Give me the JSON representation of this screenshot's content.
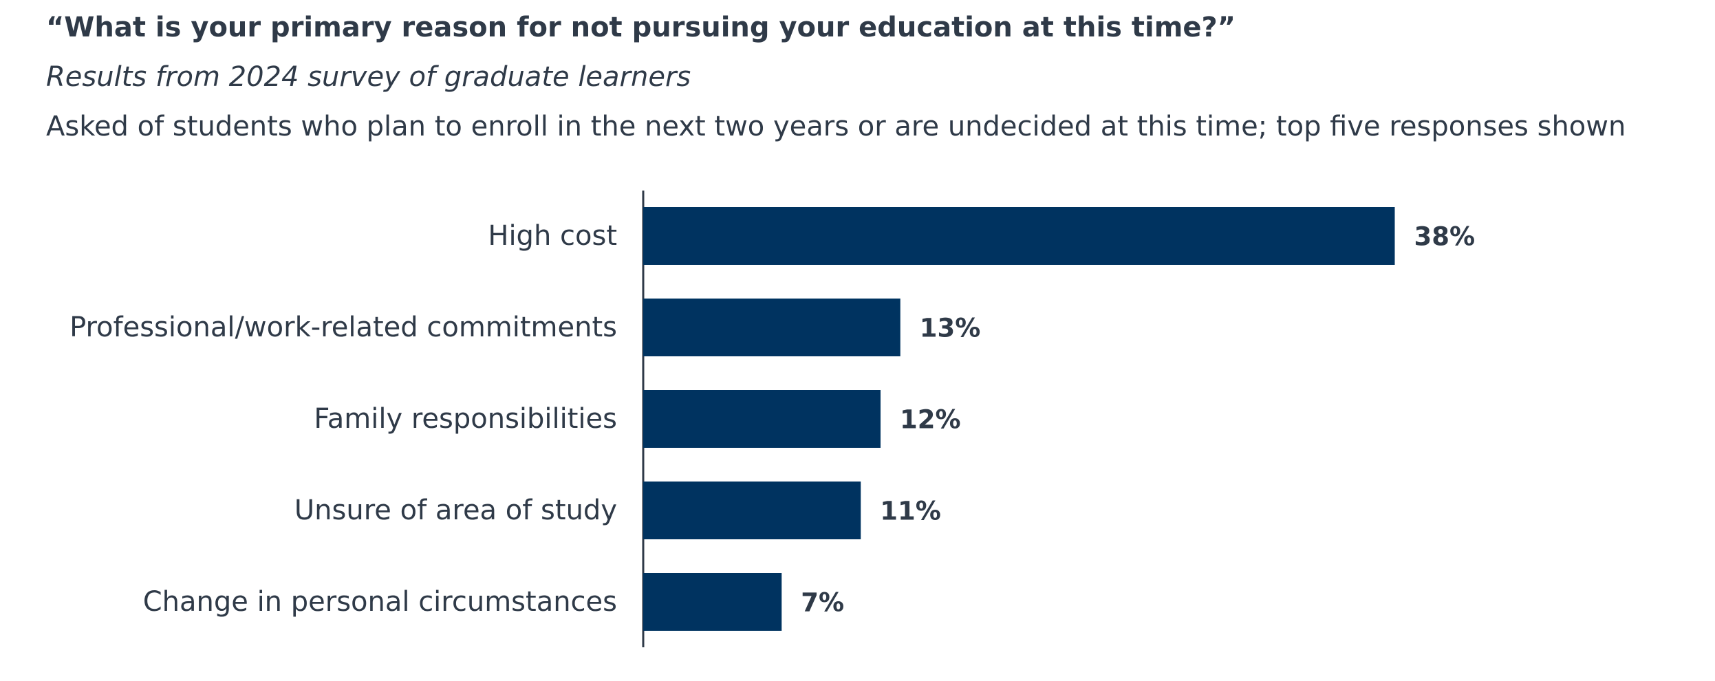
{
  "header": {
    "title": "“What is your primary reason for not pursuing your education at this time?”",
    "subtitle": "Results from 2024 survey of graduate learners",
    "note": "Asked of students who plan to enroll in the next two years or are undecided at this time; top five responses shown"
  },
  "chart_data": {
    "type": "bar",
    "orientation": "horizontal",
    "title": "“What is your primary reason for not pursuing your education at this time?”",
    "subtitle": "Results from 2024 survey of graduate learners",
    "categories": [
      "High cost",
      "Professional/work-related commitments",
      "Family responsibilities",
      "Unsure of area of study",
      "Change in personal circumstances"
    ],
    "values": [
      38,
      13,
      12,
      11,
      7
    ],
    "value_labels": [
      "38%",
      "13%",
      "12%",
      "11%",
      "7%"
    ],
    "unit": "%",
    "xlabel": "",
    "ylabel": "",
    "grid": false,
    "legend": "none",
    "bar_color": "#003360"
  }
}
